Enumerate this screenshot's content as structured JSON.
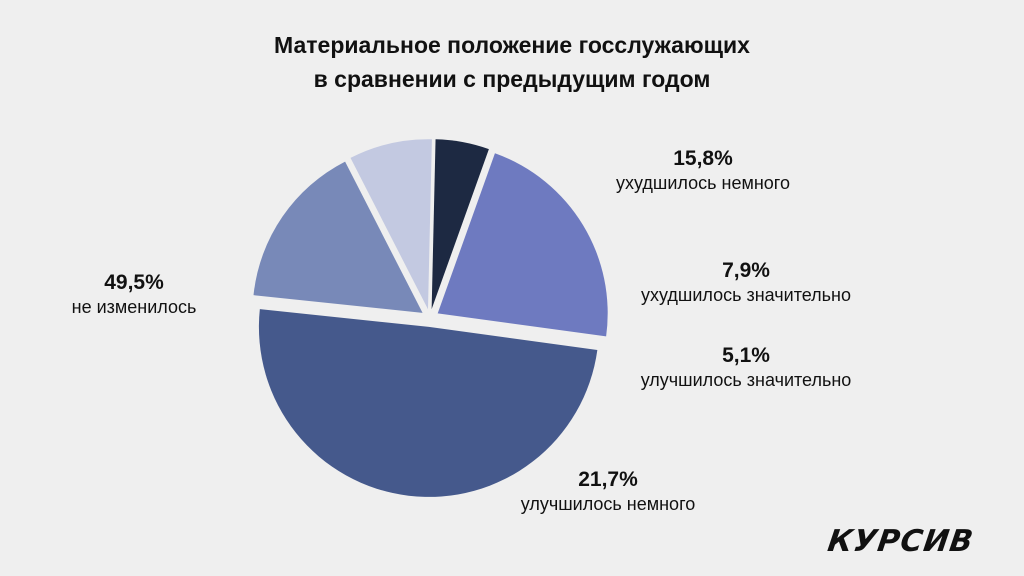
{
  "chart_data": {
    "type": "pie",
    "title": "Материальное положение госслужающих в сравнении с предыдущим годом",
    "title_lines": [
      "Материальное положение госслужающих",
      "в сравнении с предыдущим годом"
    ],
    "slices": [
      {
        "label": "ухудшилось немного",
        "value": 15.8,
        "display": "15,8%",
        "color": "#7889b8"
      },
      {
        "label": "ухудшилось значительно",
        "value": 7.9,
        "display": "7,9%",
        "color": "#c3c9e1"
      },
      {
        "label": "улучшилось значительно",
        "value": 5.1,
        "display": "5,1%",
        "color": "#1d2942"
      },
      {
        "label": "улучшилось немного",
        "value": 21.7,
        "display": "21,7%",
        "color": "#6e7ac0"
      },
      {
        "label": "не изменилось",
        "value": 49.5,
        "display": "49,5%",
        "color": "#45598c"
      }
    ]
  },
  "logo": "КУРСИВ"
}
